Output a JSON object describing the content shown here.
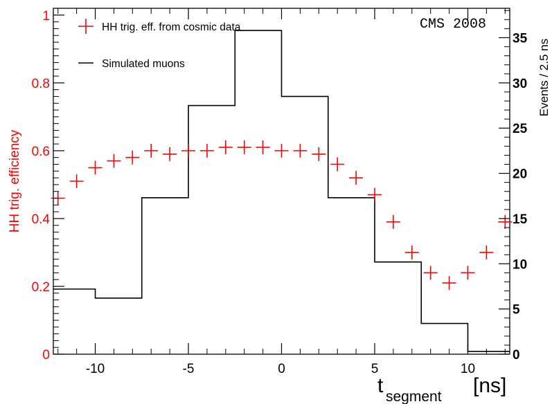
{
  "chart_data": {
    "type": "scatter",
    "label_text": "CMS 2008",
    "xlabel_main": "t",
    "xlabel_sub": "segment",
    "xunit": "[ns]",
    "ylabel_left": "HH trig. efficiency",
    "ylabel_right": "Events / 2.5 ns",
    "xlim": [
      -12.25,
      12.25
    ],
    "ylim_left": [
      0,
      1.02
    ],
    "ylim_right": [
      0,
      38.25
    ],
    "x_ticks": [
      -10,
      -5,
      0,
      5,
      10
    ],
    "x_tick_labels": [
      "-10",
      "-5",
      "0",
      "5",
      "10"
    ],
    "y_left_ticks": [
      0,
      0.2,
      0.4,
      0.6,
      0.8,
      1
    ],
    "y_left_tick_labels": [
      "0",
      "0.2",
      "0.4",
      "0.6",
      "0.8",
      "1"
    ],
    "y_right_ticks": [
      0,
      5,
      10,
      15,
      20,
      25,
      30,
      35
    ],
    "y_right_tick_labels": [
      "0",
      "5",
      "10",
      "15",
      "20",
      "25",
      "30",
      "35"
    ],
    "legend_placement": "top-left",
    "colors": {
      "efficiency": "#ff0000",
      "simulated": "#000000",
      "left_axis": "#ff0000",
      "right_axis": "#000000"
    },
    "series": [
      {
        "name": "HH trig. eff. from cosmic data",
        "axis": "left",
        "marker": "cross",
        "x": [
          -12,
          -11,
          -10,
          -9,
          -8,
          -7,
          -6,
          -5,
          -4,
          -3,
          -2,
          -1,
          0,
          1,
          2,
          3,
          4,
          5,
          6,
          7,
          8,
          9,
          10,
          11,
          12
        ],
        "y": [
          0.46,
          0.51,
          0.55,
          0.57,
          0.58,
          0.6,
          0.59,
          0.6,
          0.6,
          0.61,
          0.61,
          0.61,
          0.6,
          0.6,
          0.59,
          0.56,
          0.52,
          0.47,
          0.39,
          0.3,
          0.24,
          0.21,
          0.24,
          0.3,
          0.39
        ]
      },
      {
        "name": "Simulated muons",
        "axis": "right",
        "type": "step",
        "bin_edges": [
          -12.5,
          -10,
          -7.5,
          -5,
          -2.5,
          0,
          2.5,
          5,
          7.5,
          10,
          12.5
        ],
        "values": [
          7.2,
          6.2,
          17.3,
          27.5,
          35.8,
          28.5,
          17.3,
          10.2,
          3.4,
          0.3
        ]
      }
    ]
  }
}
